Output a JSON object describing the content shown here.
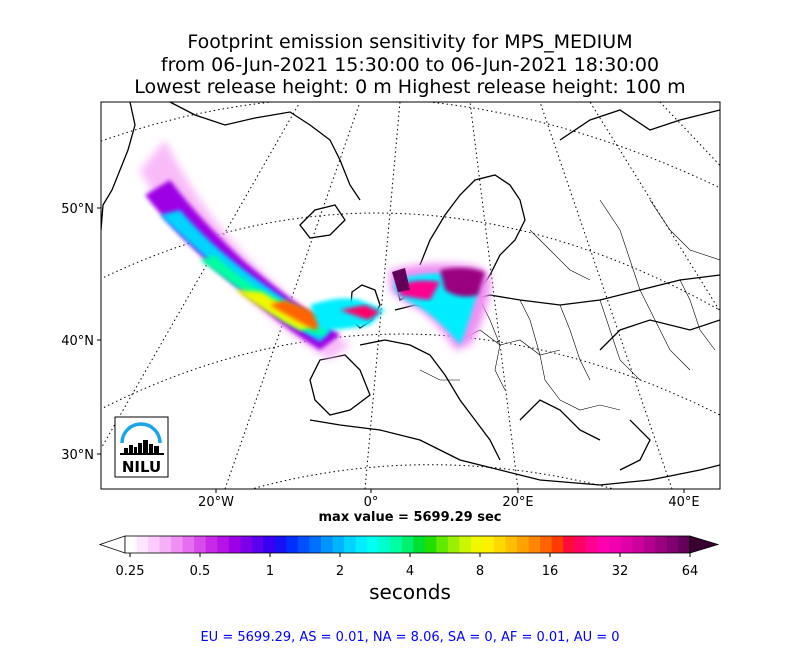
{
  "title": {
    "line1": "Footprint emission sensitivity for MPS_MEDIUM",
    "line2": "from 06-Jun-2021 15:30:00 to 06-Jun-2021 18:30:00",
    "line3": "Lowest release height: 0 m      Highest release height: 100 m"
  },
  "map": {
    "lat_labels": [
      "50°N",
      "40°N",
      "30°N"
    ],
    "lon_labels": [
      "20°W",
      "0°",
      "20°E",
      "40°E"
    ],
    "logo_text": "NILU",
    "max_value_text": "max value = 5699.29 sec"
  },
  "colorbar": {
    "tick_labels": [
      "0.25",
      "0.5",
      "1",
      "2",
      "4",
      "8",
      "16",
      "32",
      "64"
    ],
    "unit": "seconds",
    "colors": [
      "#ffffff",
      "#fde6fd",
      "#fbccfb",
      "#f7b0f7",
      "#f090f3",
      "#e66ef0",
      "#d84aeb",
      "#c828e8",
      "#b412e6",
      "#9e00e6",
      "#7e00ea",
      "#5c00ee",
      "#3a00f2",
      "#1a10f6",
      "#0030ff",
      "#0050ff",
      "#0070ff",
      "#0094ff",
      "#00b4ff",
      "#00d4ff",
      "#00eeff",
      "#00ffee",
      "#00ffcc",
      "#00ffa0",
      "#00f070",
      "#00e030",
      "#20e000",
      "#60ea00",
      "#9af000",
      "#ccf600",
      "#f0f800",
      "#ffef00",
      "#ffd800",
      "#ffbe00",
      "#ffa200",
      "#ff8600",
      "#ff6400",
      "#ff3c00",
      "#ff0a3c",
      "#ff0066",
      "#ff0090",
      "#ff00b0",
      "#f000b0",
      "#e000a8",
      "#cc009c",
      "#b40090",
      "#9a0080",
      "#800070",
      "#62005a"
    ]
  },
  "summary": "EU = 5699.29,  AS = 0.01,  NA = 8.06,  SA = 0,  AF = 0.01,  AU = 0"
}
